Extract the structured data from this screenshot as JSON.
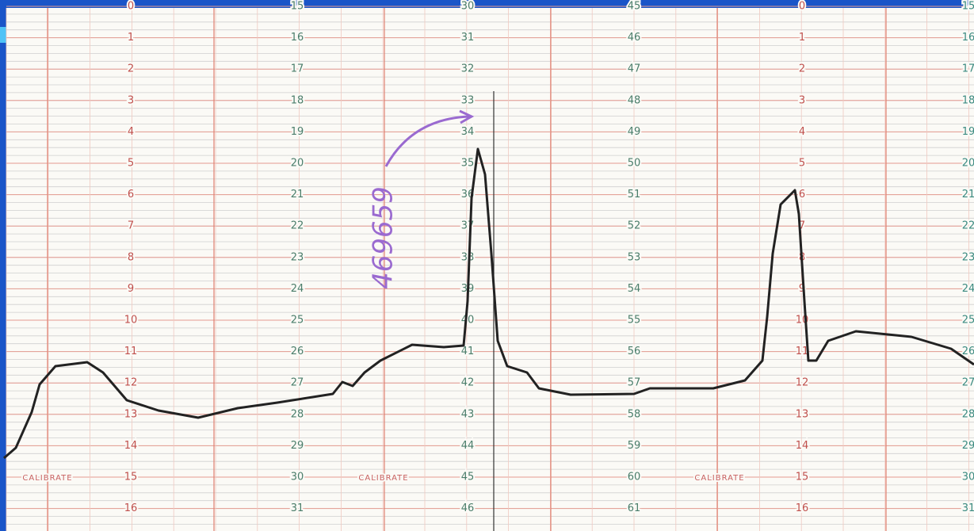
{
  "columns": [
    {
      "labels": [
        "0",
        "1",
        "2",
        "3",
        "4",
        "5",
        "6",
        "7",
        "8",
        "9",
        "10",
        "11",
        "12",
        "13",
        "14",
        "15",
        "16"
      ]
    },
    {
      "labels": [
        "15",
        "16",
        "17",
        "18",
        "19",
        "20",
        "21",
        "22",
        "23",
        "24",
        "25",
        "26",
        "27",
        "28",
        "29",
        "30",
        "31"
      ]
    },
    {
      "labels": [
        "30",
        "31",
        "32",
        "33",
        "34",
        "35",
        "36",
        "37",
        "38",
        "39",
        "40",
        "41",
        "42",
        "43",
        "44",
        "45",
        "46"
      ]
    },
    {
      "labels": [
        "45",
        "46",
        "47",
        "48",
        "49",
        "50",
        "51",
        "52",
        "53",
        "54",
        "55",
        "56",
        "57",
        "58",
        "59",
        "60",
        "61"
      ]
    },
    {
      "labels": [
        "0",
        "1",
        "2",
        "3",
        "4",
        "5",
        "6",
        "7",
        "8",
        "9",
        "10",
        "11",
        "12",
        "13",
        "14",
        "15",
        "16"
      ]
    },
    {
      "labels": [
        "15",
        "16",
        "17",
        "18",
        "19",
        "20",
        "21",
        "22",
        "23",
        "24",
        "25",
        "26",
        "27",
        "28",
        "29",
        "30",
        "31"
      ]
    }
  ],
  "calibrate": [
    "CALIBRATE",
    "CALIBRATE",
    "CALIBRATE"
  ],
  "annotation": "469659"
}
